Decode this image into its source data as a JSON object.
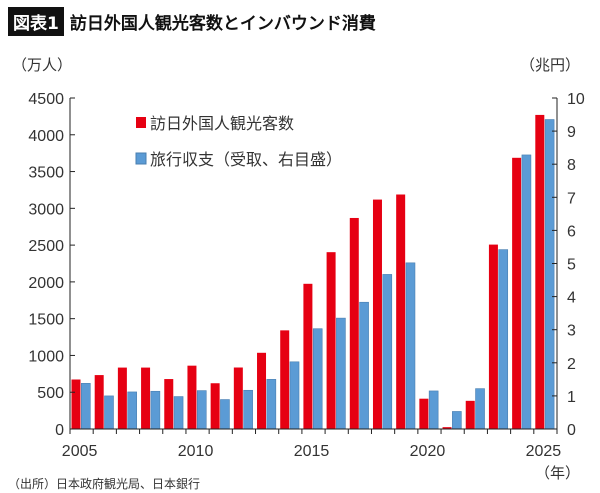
{
  "header": {
    "badge": "図表1",
    "title": "訪日外国人観光客数とインバウンド消費"
  },
  "source": "（出所）日本政府観光局、日本銀行",
  "chart_data": {
    "type": "bar",
    "title": "訪日外国人観光客数とインバウンド消費",
    "left_unit": "（万人）",
    "right_unit": "（兆円）",
    "x_unit": "（年）",
    "x": [
      2005,
      2006,
      2007,
      2008,
      2009,
      2010,
      2011,
      2012,
      2013,
      2014,
      2015,
      2016,
      2017,
      2018,
      2019,
      2020,
      2021,
      2022,
      2023,
      2024,
      2025
    ],
    "x_tick_labels": [
      "2005",
      "2010",
      "2015",
      "2020",
      "2025"
    ],
    "ylim_left": [
      0,
      4500
    ],
    "yticks_left": [
      "0",
      "500",
      "1000",
      "1500",
      "2000",
      "2500",
      "3000",
      "3500",
      "4000",
      "4500"
    ],
    "ylim_right": [
      0,
      10
    ],
    "yticks_right": [
      "0",
      "1",
      "2",
      "3",
      "4",
      "5",
      "6",
      "7",
      "8",
      "9",
      "10"
    ],
    "grid": false,
    "legend": "top-left",
    "series": [
      {
        "name": "訪日外国人観光客数",
        "axis": "left",
        "color": "#e60012",
        "values": [
          673,
          733,
          835,
          835,
          679,
          861,
          622,
          836,
          1036,
          1341,
          1974,
          2404,
          2869,
          3119,
          3188,
          412,
          25,
          383,
          2507,
          3687,
          4270
        ]
      },
      {
        "name": "旅行収支（受取、右目盛）",
        "axis": "right",
        "color": "#5b9bd5",
        "values": [
          1.38,
          1.0,
          1.12,
          1.14,
          0.98,
          1.16,
          0.89,
          1.17,
          1.5,
          2.03,
          3.03,
          3.35,
          3.83,
          4.67,
          5.02,
          1.15,
          0.53,
          1.22,
          5.42,
          8.28,
          9.35
        ]
      }
    ]
  }
}
